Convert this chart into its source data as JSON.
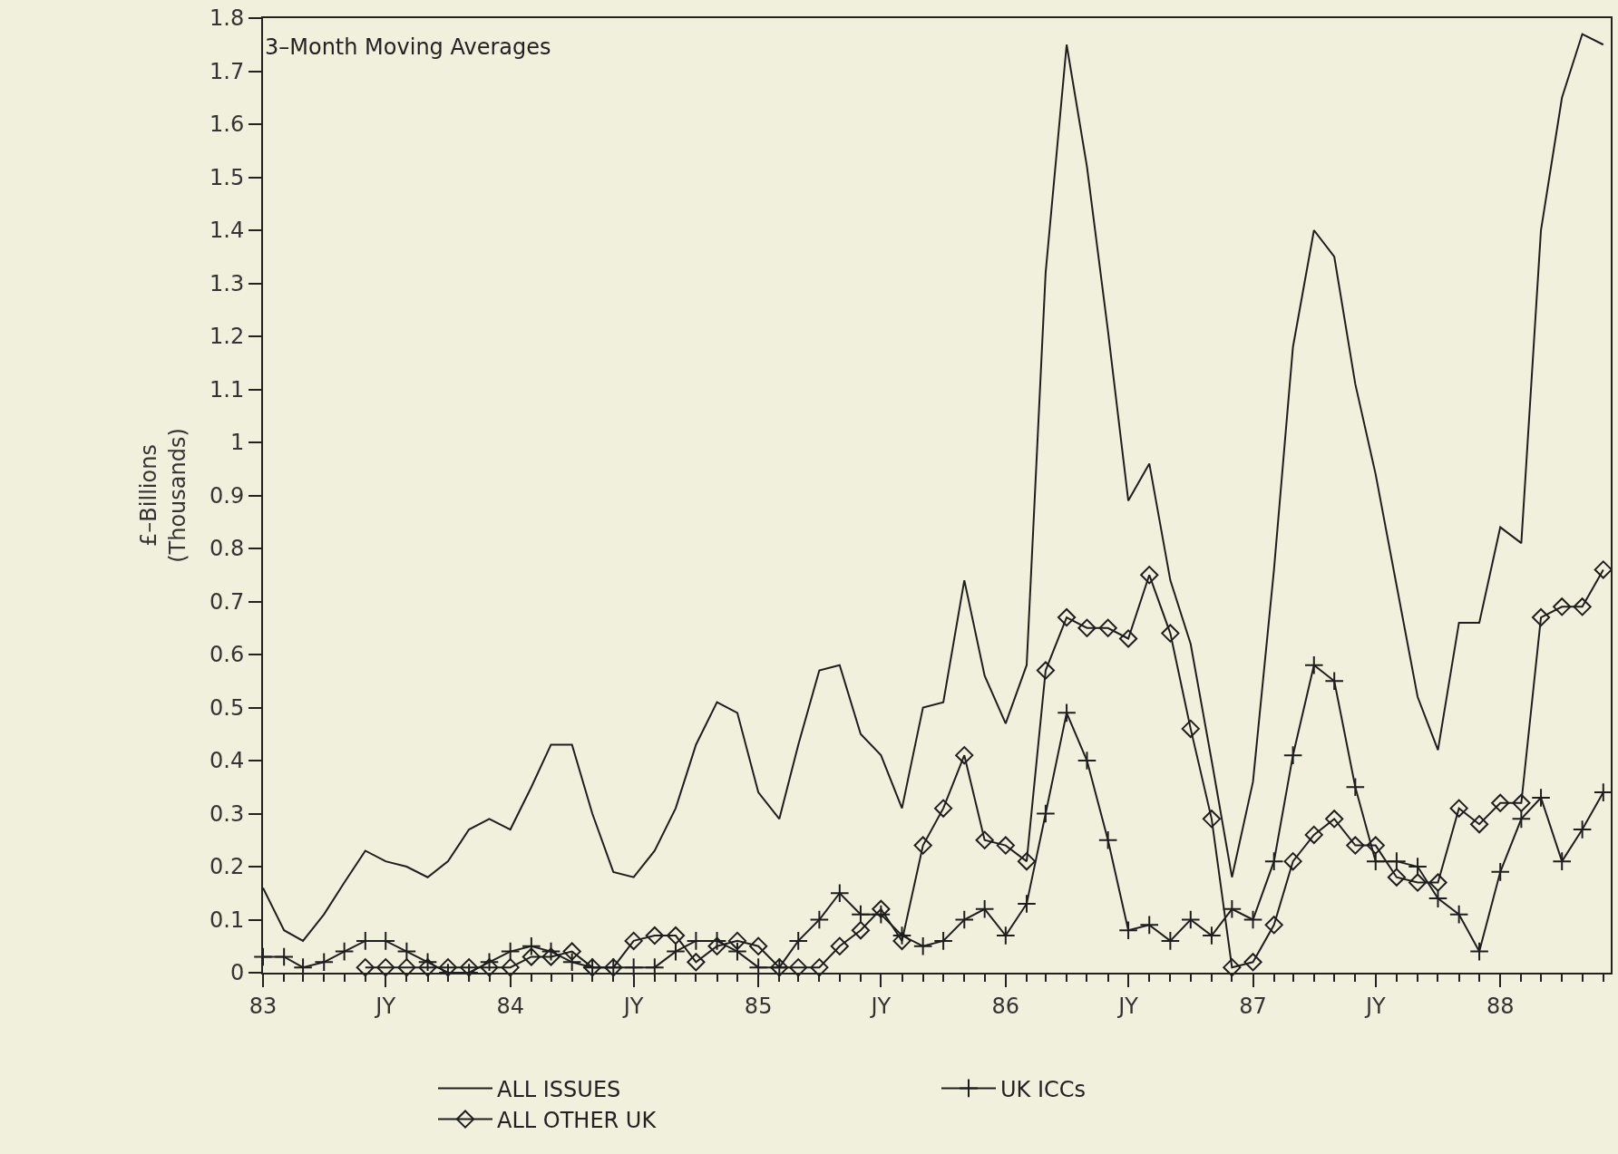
{
  "chart_data": {
    "type": "line",
    "annotations": [
      "3–Month Moving Averages"
    ],
    "ylabel": "£–Billions\n(Thousands)",
    "x": [
      "1983-01",
      "1983-02",
      "1983-03",
      "1983-04",
      "1983-05",
      "1983-06",
      "1983-07",
      "1983-08",
      "1983-09",
      "1983-10",
      "1983-11",
      "1983-12",
      "1984-01",
      "1984-02",
      "1984-03",
      "1984-04",
      "1984-05",
      "1984-06",
      "1984-07",
      "1984-08",
      "1984-09",
      "1984-10",
      "1984-11",
      "1984-12",
      "1985-01",
      "1985-02",
      "1985-03",
      "1985-04",
      "1985-05",
      "1985-06",
      "1985-07",
      "1985-08",
      "1985-09",
      "1985-10",
      "1985-11",
      "1985-12",
      "1986-01",
      "1986-02",
      "1986-03",
      "1986-04",
      "1986-05",
      "1986-06",
      "1986-07",
      "1986-08",
      "1986-09",
      "1986-10",
      "1986-11",
      "1986-12",
      "1987-01",
      "1987-02",
      "1987-03",
      "1987-04",
      "1987-05",
      "1987-06",
      "1987-07",
      "1987-08",
      "1987-09",
      "1987-10",
      "1987-11",
      "1987-12",
      "1988-01",
      "1988-02",
      "1988-03",
      "1988-04",
      "1988-05",
      "1988-06"
    ],
    "series": [
      {
        "name": "ALL ISSUES",
        "color": "#1e1e1e",
        "marker": "none",
        "values": [
          0.16,
          0.08,
          0.06,
          0.11,
          0.17,
          0.23,
          0.21,
          0.2,
          0.18,
          0.21,
          0.27,
          0.29,
          0.27,
          0.35,
          0.43,
          0.43,
          0.3,
          0.19,
          0.18,
          0.23,
          0.31,
          0.43,
          0.51,
          0.49,
          0.34,
          0.29,
          0.43,
          0.57,
          0.58,
          0.45,
          0.41,
          0.31,
          0.5,
          0.51,
          0.74,
          0.56,
          0.47,
          0.58,
          1.32,
          1.75,
          1.52,
          1.21,
          0.89,
          0.96,
          0.74,
          0.62,
          0.4,
          0.18,
          0.36,
          0.76,
          1.18,
          1.4,
          1.35,
          1.11,
          0.94,
          0.73,
          0.52,
          0.42,
          0.66,
          0.66,
          0.84,
          0.81,
          1.4,
          1.65,
          1.77,
          1.75
        ]
      },
      {
        "name": "UK ICCs",
        "color": "#1e1e1e",
        "marker": "cross",
        "values": [
          0.03,
          0.03,
          0.01,
          0.02,
          0.04,
          0.06,
          0.06,
          0.04,
          0.02,
          0.0,
          0.0,
          0.02,
          0.04,
          0.05,
          0.04,
          0.02,
          0.01,
          0.01,
          0.01,
          0.01,
          0.04,
          0.06,
          0.06,
          0.04,
          0.01,
          0.01,
          0.06,
          0.1,
          0.15,
          0.11,
          0.11,
          0.07,
          0.05,
          0.06,
          0.1,
          0.12,
          0.07,
          0.13,
          0.3,
          0.49,
          0.4,
          0.25,
          0.08,
          0.09,
          0.06,
          0.1,
          0.07,
          0.12,
          0.1,
          0.21,
          0.41,
          0.58,
          0.55,
          0.35,
          0.21,
          0.21,
          0.2,
          0.14,
          0.11,
          0.04,
          0.19,
          0.29,
          0.33,
          0.21,
          0.27,
          0.34
        ]
      },
      {
        "name": "ALL OTHER UK",
        "color": "#1e1e1e",
        "marker": "diamond",
        "values": [
          null,
          null,
          null,
          null,
          null,
          0.01,
          0.01,
          0.01,
          0.01,
          0.01,
          0.01,
          0.01,
          0.01,
          0.03,
          0.03,
          0.04,
          0.01,
          0.01,
          0.06,
          0.07,
          0.07,
          0.02,
          0.05,
          0.06,
          0.05,
          0.01,
          0.01,
          0.01,
          0.05,
          0.08,
          0.12,
          0.06,
          0.24,
          0.31,
          0.41,
          0.25,
          0.24,
          0.21,
          0.57,
          0.67,
          0.65,
          0.65,
          0.63,
          0.75,
          0.64,
          0.46,
          0.29,
          0.01,
          0.02,
          0.09,
          0.21,
          0.26,
          0.29,
          0.24,
          0.24,
          0.18,
          0.17,
          0.17,
          0.31,
          0.28,
          0.32,
          0.32,
          0.67,
          0.69,
          0.69,
          0.76
        ]
      }
    ],
    "xlim": [
      "1983-01",
      "1988-06-12"
    ],
    "xticks": [
      {
        "value": "1983-01",
        "label": "83"
      },
      {
        "value": "1983-07",
        "label": "JY"
      },
      {
        "value": "1984-01",
        "label": "84"
      },
      {
        "value": "1984-07",
        "label": "JY"
      },
      {
        "value": "1985-01",
        "label": "85"
      },
      {
        "value": "1985-07",
        "label": "JY"
      },
      {
        "value": "1986-01",
        "label": "86"
      },
      {
        "value": "1986-07",
        "label": "JY"
      },
      {
        "value": "1987-01",
        "label": "87"
      },
      {
        "value": "1987-07",
        "label": "JY"
      },
      {
        "value": "1988-01",
        "label": "88"
      }
    ],
    "ylim": [
      0,
      1.8
    ],
    "yticks": [
      0,
      0.1,
      0.2,
      0.3,
      0.4,
      0.5,
      0.6,
      0.7,
      0.8,
      0.9,
      1,
      1.1,
      1.2,
      1.3,
      1.4,
      1.5,
      1.6,
      1.7,
      1.8
    ],
    "grid": false,
    "legend": "bottom",
    "line_style": "solid"
  }
}
